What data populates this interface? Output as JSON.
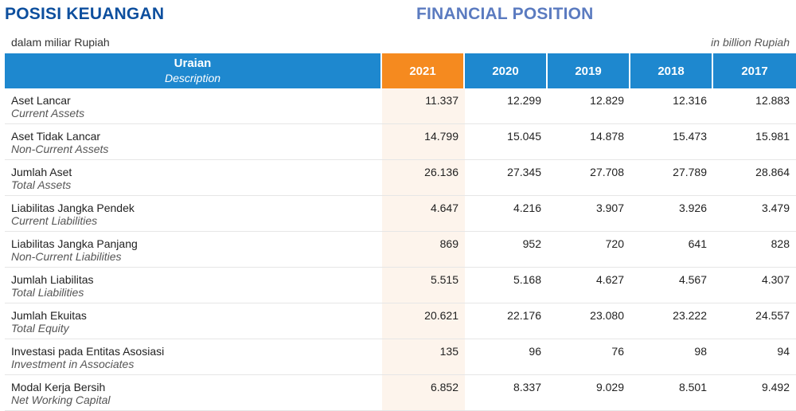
{
  "titles": {
    "id": "POSISI KEUANGAN",
    "en": "FINANCIAL POSITION"
  },
  "units": {
    "id": "dalam miliar Rupiah",
    "en": "in billion Rupiah"
  },
  "colors": {
    "header_blue": "#1e88cf",
    "highlight_orange": "#f58a1f",
    "highlight_bg": "#fdf4ec",
    "title_dark_blue": "#0d4f9e",
    "title_light_blue": "#5b7bc0"
  },
  "table": {
    "header": {
      "desc_id": "Uraian",
      "desc_en": "Description",
      "years": [
        "2021",
        "2020",
        "2019",
        "2018",
        "2017"
      ]
    },
    "rows": [
      {
        "id": "Aset Lancar",
        "en": "Current Assets",
        "values": [
          "11.337",
          "12.299",
          "12.829",
          "12.316",
          "12.883"
        ]
      },
      {
        "id": "Aset Tidak Lancar",
        "en": "Non-Current Assets",
        "values": [
          "14.799",
          "15.045",
          "14.878",
          "15.473",
          "15.981"
        ]
      },
      {
        "id": "Jumlah Aset",
        "en": "Total Assets",
        "values": [
          "26.136",
          "27.345",
          "27.708",
          "27.789",
          "28.864"
        ]
      },
      {
        "id": "Liabilitas Jangka Pendek",
        "en": "Current Liabilities",
        "values": [
          "4.647",
          "4.216",
          "3.907",
          "3.926",
          "3.479"
        ]
      },
      {
        "id": "Liabilitas Jangka Panjang",
        "en": "Non-Current Liabilities",
        "values": [
          "869",
          "952",
          "720",
          "641",
          "828"
        ]
      },
      {
        "id": "Jumlah Liabilitas",
        "en": "Total Liabilities",
        "values": [
          "5.515",
          "5.168",
          "4.627",
          "4.567",
          "4.307"
        ]
      },
      {
        "id": "Jumlah Ekuitas",
        "en": "Total Equity",
        "values": [
          "20.621",
          "22.176",
          "23.080",
          "23.222",
          "24.557"
        ]
      },
      {
        "id": "Investasi pada Entitas Asosiasi",
        "en": "Investment in Associates",
        "values": [
          "135",
          "96",
          "76",
          "98",
          "94"
        ]
      },
      {
        "id": "Modal Kerja Bersih",
        "en": "Net Working Capital",
        "values": [
          "6.852",
          "8.337",
          "9.029",
          "8.501",
          "9.492"
        ]
      }
    ]
  }
}
